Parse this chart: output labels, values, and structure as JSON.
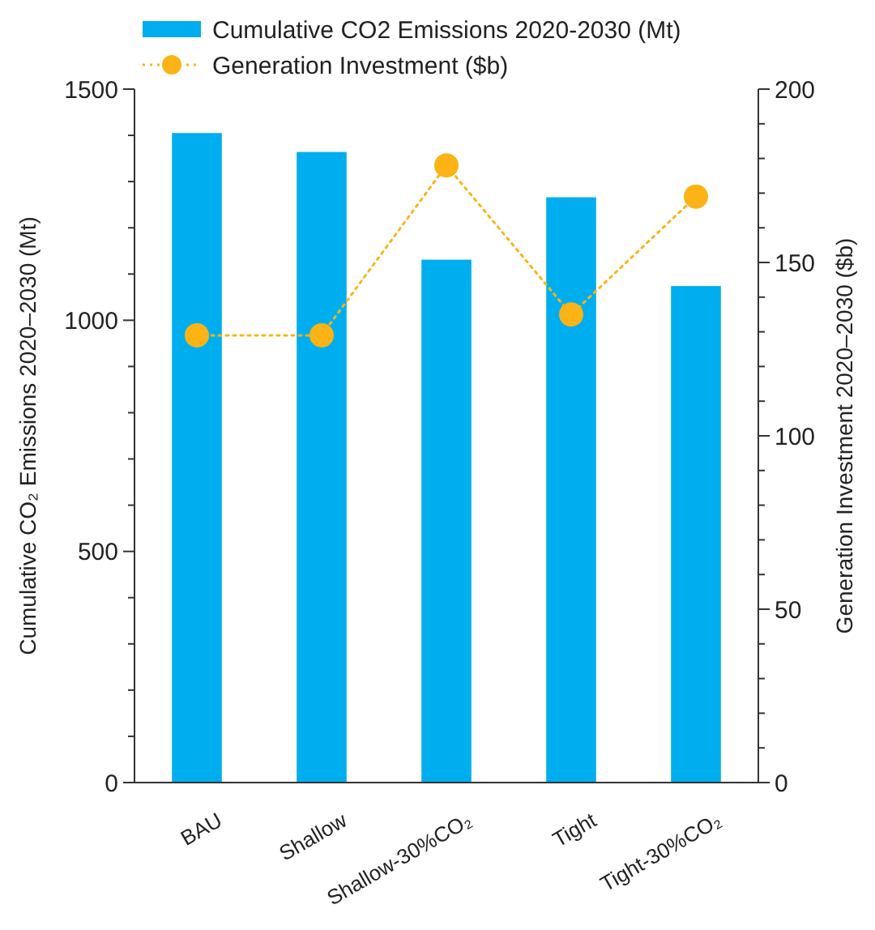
{
  "chart_data": {
    "type": "bar",
    "categories": [
      "BAU",
      "Shallow",
      "Shallow-30%CO₂",
      "Tight",
      "Tight-30%CO₂"
    ],
    "series": [
      {
        "name": "Cumulative CO2 Emissions 2020-2030 (Mt)",
        "color": "#00aeef",
        "values": [
          1405,
          1364,
          1131,
          1266,
          1074
        ]
      },
      {
        "name": "Generation Investment ($b)",
        "type": "line",
        "axis": "y2",
        "color": "#fbb315",
        "marker": "circle",
        "line_style": "dotted",
        "values": [
          129,
          129,
          178,
          135,
          169
        ]
      }
    ],
    "ylabel": "Cumulative CO₂ Emissions 2020–2030 (Mt)",
    "y2label": "Generation Investment 2020–2030 ($b)",
    "ylim": [
      0,
      1500
    ],
    "yticks": [
      0,
      {
        "value": 100,
        "label": null
      },
      {
        "value": 200,
        "label": null
      },
      {
        "value": 300,
        "label": null
      },
      {
        "value": 400,
        "label": null
      },
      500,
      {
        "value": 600,
        "label": null
      },
      {
        "value": 700,
        "label": null
      },
      {
        "value": 800,
        "label": null
      },
      {
        "value": 900,
        "label": null
      },
      1000,
      {
        "value": 1100,
        "label": null
      },
      {
        "value": 1200,
        "label": null
      },
      {
        "value": 1300,
        "label": null
      },
      {
        "value": 1400,
        "label": null
      },
      1500
    ],
    "y2lim": [
      0,
      200
    ],
    "y2ticks": [
      0,
      {
        "value": 10,
        "label": null
      },
      {
        "value": 20,
        "label": null
      },
      {
        "value": 30,
        "label": null
      },
      {
        "value": 40,
        "label": null
      },
      50,
      {
        "value": 60,
        "label": null
      },
      {
        "value": 70,
        "label": null
      },
      {
        "value": 80,
        "label": null
      },
      {
        "value": 90,
        "label": null
      },
      100,
      {
        "value": 110,
        "label": null
      },
      {
        "value": 120,
        "label": null
      },
      {
        "value": 130,
        "label": null
      },
      {
        "value": 140,
        "label": null
      },
      150,
      {
        "value": 160,
        "label": null
      },
      {
        "value": 170,
        "label": null
      },
      {
        "value": 180,
        "label": null
      },
      {
        "value": 190,
        "label": null
      },
      200
    ],
    "legend": "top",
    "grid": false
  }
}
